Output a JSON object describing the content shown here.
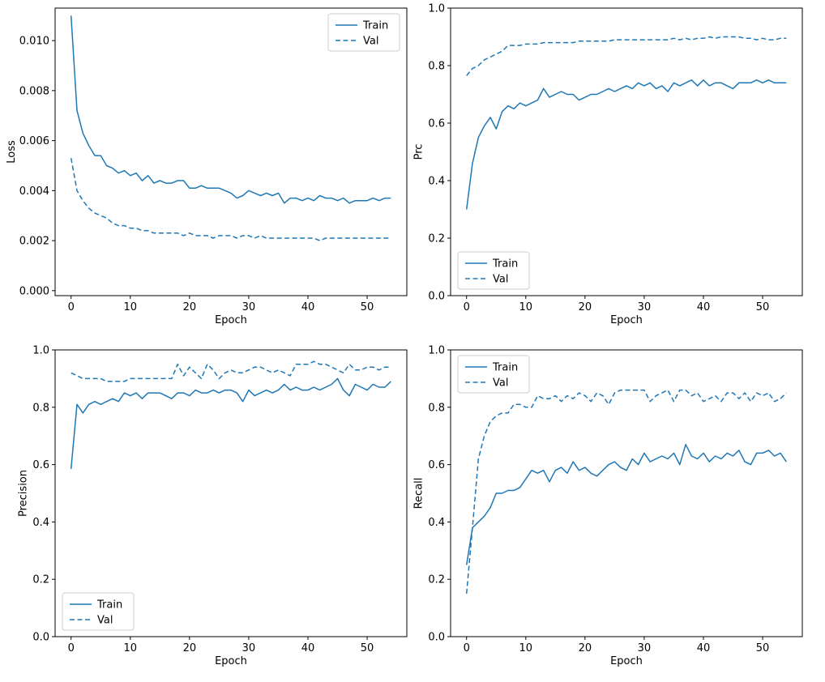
{
  "figure": {
    "background": "#ffffff",
    "line_color": "#1f77b4",
    "spine_color": "#000000",
    "legend_border_color": "#cccccc"
  },
  "epochs": [
    0,
    1,
    2,
    3,
    4,
    5,
    6,
    7,
    8,
    9,
    10,
    11,
    12,
    13,
    14,
    15,
    16,
    17,
    18,
    19,
    20,
    21,
    22,
    23,
    24,
    25,
    26,
    27,
    28,
    29,
    30,
    31,
    32,
    33,
    34,
    35,
    36,
    37,
    38,
    39,
    40,
    41,
    42,
    43,
    44,
    45,
    46,
    47,
    48,
    49,
    50,
    51,
    52,
    53,
    54
  ],
  "chart_data": [
    {
      "type": "line",
      "title": "",
      "xlabel": "Epoch",
      "ylabel": "Loss",
      "xlim": [
        -2.7,
        56.7
      ],
      "ylim": [
        -0.0002,
        0.0113
      ],
      "xticks": [
        0,
        10,
        20,
        30,
        40,
        50
      ],
      "xtick_labels": [
        "0",
        "10",
        "20",
        "30",
        "40",
        "50"
      ],
      "yticks": [
        0.0,
        0.002,
        0.004,
        0.006,
        0.008,
        0.01
      ],
      "ytick_labels": [
        "0.000",
        "0.002",
        "0.004",
        "0.006",
        "0.008",
        "0.010"
      ],
      "grid": false,
      "legend_position": "top-right",
      "series": [
        {
          "name": "Train",
          "style": "solid",
          "values": [
            0.011,
            0.0072,
            0.0063,
            0.0058,
            0.0054,
            0.0054,
            0.005,
            0.0049,
            0.0047,
            0.0048,
            0.0046,
            0.0047,
            0.0044,
            0.0046,
            0.0043,
            0.0044,
            0.0043,
            0.0043,
            0.0044,
            0.0044,
            0.0041,
            0.0041,
            0.0042,
            0.0041,
            0.0041,
            0.0041,
            0.004,
            0.0039,
            0.0037,
            0.0038,
            0.004,
            0.0039,
            0.0038,
            0.0039,
            0.0038,
            0.0039,
            0.0035,
            0.0037,
            0.0037,
            0.0036,
            0.0037,
            0.0036,
            0.0038,
            0.0037,
            0.0037,
            0.0036,
            0.0037,
            0.0035,
            0.0036,
            0.0036,
            0.0036,
            0.0037,
            0.0036,
            0.0037,
            0.0037
          ]
        },
        {
          "name": "Val",
          "style": "dashed",
          "values": [
            0.0053,
            0.004,
            0.0036,
            0.0033,
            0.0031,
            0.003,
            0.0029,
            0.0027,
            0.0026,
            0.0026,
            0.0025,
            0.0025,
            0.0024,
            0.0024,
            0.0023,
            0.0023,
            0.0023,
            0.0023,
            0.0023,
            0.0022,
            0.0023,
            0.0022,
            0.0022,
            0.0022,
            0.0021,
            0.0022,
            0.0022,
            0.0022,
            0.0021,
            0.0022,
            0.0022,
            0.0021,
            0.0022,
            0.0021,
            0.0021,
            0.0021,
            0.0021,
            0.0021,
            0.0021,
            0.0021,
            0.0021,
            0.0021,
            0.002,
            0.0021,
            0.0021,
            0.0021,
            0.0021,
            0.0021,
            0.0021,
            0.0021,
            0.0021,
            0.0021,
            0.0021,
            0.0021,
            0.0021
          ]
        }
      ]
    },
    {
      "type": "line",
      "title": "",
      "xlabel": "Epoch",
      "ylabel": "Prc",
      "xlim": [
        -2.7,
        56.7
      ],
      "ylim": [
        0.0,
        1.0
      ],
      "xticks": [
        0,
        10,
        20,
        30,
        40,
        50
      ],
      "xtick_labels": [
        "0",
        "10",
        "20",
        "30",
        "40",
        "50"
      ],
      "yticks": [
        0.0,
        0.2,
        0.4,
        0.6,
        0.8,
        1.0
      ],
      "ytick_labels": [
        "0.0",
        "0.2",
        "0.4",
        "0.6",
        "0.8",
        "1.0"
      ],
      "grid": false,
      "legend_position": "bottom-left",
      "series": [
        {
          "name": "Train",
          "style": "solid",
          "values": [
            0.3,
            0.46,
            0.55,
            0.59,
            0.62,
            0.58,
            0.64,
            0.66,
            0.65,
            0.67,
            0.66,
            0.67,
            0.68,
            0.72,
            0.69,
            0.7,
            0.71,
            0.7,
            0.7,
            0.68,
            0.69,
            0.7,
            0.7,
            0.71,
            0.72,
            0.71,
            0.72,
            0.73,
            0.72,
            0.74,
            0.73,
            0.74,
            0.72,
            0.73,
            0.71,
            0.74,
            0.73,
            0.74,
            0.75,
            0.73,
            0.75,
            0.73,
            0.74,
            0.74,
            0.73,
            0.72,
            0.74,
            0.74,
            0.74,
            0.75,
            0.74,
            0.75,
            0.74,
            0.74,
            0.74
          ]
        },
        {
          "name": "Val",
          "style": "dashed",
          "values": [
            0.765,
            0.79,
            0.8,
            0.82,
            0.83,
            0.84,
            0.85,
            0.87,
            0.87,
            0.87,
            0.875,
            0.875,
            0.875,
            0.88,
            0.88,
            0.88,
            0.88,
            0.88,
            0.88,
            0.885,
            0.885,
            0.885,
            0.885,
            0.885,
            0.885,
            0.89,
            0.89,
            0.89,
            0.89,
            0.89,
            0.89,
            0.89,
            0.89,
            0.89,
            0.89,
            0.895,
            0.89,
            0.895,
            0.89,
            0.895,
            0.895,
            0.9,
            0.895,
            0.9,
            0.9,
            0.9,
            0.9,
            0.895,
            0.895,
            0.89,
            0.895,
            0.89,
            0.89,
            0.895,
            0.895
          ]
        }
      ]
    },
    {
      "type": "line",
      "title": "",
      "xlabel": "Epoch",
      "ylabel": "Precision",
      "xlim": [
        -2.7,
        56.7
      ],
      "ylim": [
        0.0,
        1.0
      ],
      "xticks": [
        0,
        10,
        20,
        30,
        40,
        50
      ],
      "xtick_labels": [
        "0",
        "10",
        "20",
        "30",
        "40",
        "50"
      ],
      "yticks": [
        0.0,
        0.2,
        0.4,
        0.6,
        0.8,
        1.0
      ],
      "ytick_labels": [
        "0.0",
        "0.2",
        "0.4",
        "0.6",
        "0.8",
        "1.0"
      ],
      "grid": false,
      "legend_position": "bottom-left",
      "series": [
        {
          "name": "Train",
          "style": "solid",
          "values": [
            0.585,
            0.81,
            0.78,
            0.81,
            0.82,
            0.81,
            0.82,
            0.83,
            0.82,
            0.85,
            0.84,
            0.85,
            0.83,
            0.85,
            0.85,
            0.85,
            0.84,
            0.83,
            0.85,
            0.85,
            0.84,
            0.86,
            0.85,
            0.85,
            0.86,
            0.85,
            0.86,
            0.86,
            0.85,
            0.82,
            0.86,
            0.84,
            0.85,
            0.86,
            0.85,
            0.86,
            0.88,
            0.86,
            0.87,
            0.86,
            0.86,
            0.87,
            0.86,
            0.87,
            0.88,
            0.9,
            0.86,
            0.84,
            0.88,
            0.87,
            0.86,
            0.88,
            0.87,
            0.87,
            0.89
          ]
        },
        {
          "name": "Val",
          "style": "dashed",
          "values": [
            0.92,
            0.91,
            0.9,
            0.9,
            0.9,
            0.9,
            0.89,
            0.89,
            0.89,
            0.89,
            0.9,
            0.9,
            0.9,
            0.9,
            0.9,
            0.9,
            0.9,
            0.9,
            0.95,
            0.91,
            0.94,
            0.92,
            0.9,
            0.95,
            0.93,
            0.9,
            0.92,
            0.93,
            0.92,
            0.92,
            0.93,
            0.94,
            0.94,
            0.93,
            0.92,
            0.93,
            0.92,
            0.91,
            0.95,
            0.95,
            0.95,
            0.96,
            0.95,
            0.95,
            0.94,
            0.93,
            0.92,
            0.95,
            0.93,
            0.93,
            0.94,
            0.94,
            0.93,
            0.94,
            0.94
          ]
        }
      ]
    },
    {
      "type": "line",
      "title": "",
      "xlabel": "Epoch",
      "ylabel": "Recall",
      "xlim": [
        -2.7,
        56.7
      ],
      "ylim": [
        0.0,
        1.0
      ],
      "xticks": [
        0,
        10,
        20,
        30,
        40,
        50
      ],
      "xtick_labels": [
        "0",
        "10",
        "20",
        "30",
        "40",
        "50"
      ],
      "yticks": [
        0.0,
        0.2,
        0.4,
        0.6,
        0.8,
        1.0
      ],
      "ytick_labels": [
        "0.0",
        "0.2",
        "0.4",
        "0.6",
        "0.8",
        "1.0"
      ],
      "grid": false,
      "legend_position": "top-left",
      "series": [
        {
          "name": "Train",
          "style": "solid",
          "values": [
            0.25,
            0.38,
            0.4,
            0.42,
            0.45,
            0.5,
            0.5,
            0.51,
            0.51,
            0.52,
            0.55,
            0.58,
            0.57,
            0.58,
            0.54,
            0.58,
            0.59,
            0.57,
            0.61,
            0.58,
            0.59,
            0.57,
            0.56,
            0.58,
            0.6,
            0.61,
            0.59,
            0.58,
            0.62,
            0.6,
            0.64,
            0.61,
            0.62,
            0.63,
            0.62,
            0.64,
            0.6,
            0.67,
            0.63,
            0.62,
            0.64,
            0.61,
            0.63,
            0.62,
            0.64,
            0.63,
            0.65,
            0.61,
            0.6,
            0.64,
            0.64,
            0.65,
            0.63,
            0.64,
            0.61
          ]
        },
        {
          "name": "Val",
          "style": "dashed",
          "values": [
            0.15,
            0.38,
            0.62,
            0.7,
            0.75,
            0.77,
            0.78,
            0.78,
            0.81,
            0.81,
            0.8,
            0.8,
            0.84,
            0.83,
            0.83,
            0.84,
            0.82,
            0.84,
            0.83,
            0.85,
            0.84,
            0.82,
            0.85,
            0.84,
            0.81,
            0.85,
            0.86,
            0.86,
            0.86,
            0.86,
            0.86,
            0.82,
            0.84,
            0.85,
            0.86,
            0.82,
            0.86,
            0.86,
            0.84,
            0.85,
            0.82,
            0.83,
            0.84,
            0.82,
            0.85,
            0.85,
            0.83,
            0.85,
            0.82,
            0.85,
            0.84,
            0.85,
            0.82,
            0.83,
            0.85
          ]
        }
      ]
    }
  ]
}
